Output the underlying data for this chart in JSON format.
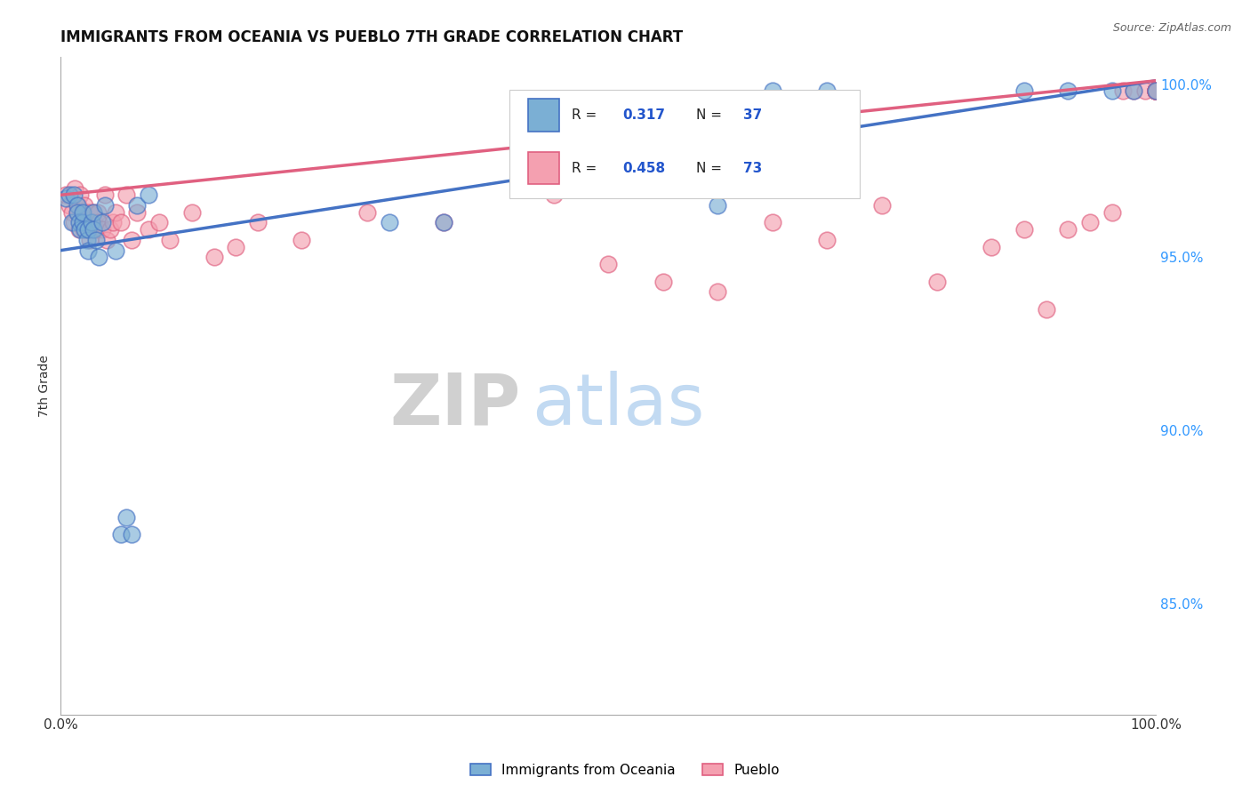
{
  "title": "IMMIGRANTS FROM OCEANIA VS PUEBLO 7TH GRADE CORRELATION CHART",
  "source_text": "Source: ZipAtlas.com",
  "ylabel": "7th Grade",
  "watermark_zip": "ZIP",
  "watermark_atlas": "atlas",
  "xlim": [
    0.0,
    1.0
  ],
  "ylim": [
    0.818,
    1.008
  ],
  "right_yticks": [
    0.85,
    0.9,
    0.95,
    1.0
  ],
  "right_yticklabels": [
    "85.0%",
    "90.0%",
    "95.0%",
    "100.0%"
  ],
  "xticks": [
    0.0,
    1.0
  ],
  "xticklabels": [
    "0.0%",
    "100.0%"
  ],
  "blue_R": 0.317,
  "blue_N": 37,
  "pink_R": 0.458,
  "pink_N": 73,
  "blue_color": "#7BAFD4",
  "pink_color": "#F4A0B0",
  "blue_line_color": "#4472C4",
  "pink_line_color": "#E06080",
  "legend_label_blue": "Immigrants from Oceania",
  "legend_label_pink": "Pueblo",
  "blue_line_x0": 0.0,
  "blue_line_y0": 0.952,
  "blue_line_x1": 1.0,
  "blue_line_y1": 1.001,
  "pink_line_x0": 0.0,
  "pink_line_y0": 0.968,
  "pink_line_x1": 1.0,
  "pink_line_y1": 1.001,
  "blue_x": [
    0.005,
    0.008,
    0.01,
    0.012,
    0.015,
    0.015,
    0.017,
    0.018,
    0.02,
    0.02,
    0.022,
    0.024,
    0.025,
    0.025,
    0.028,
    0.03,
    0.03,
    0.032,
    0.035,
    0.038,
    0.04,
    0.05,
    0.055,
    0.06,
    0.065,
    0.07,
    0.08,
    0.3,
    0.35,
    0.6,
    0.65,
    0.7,
    0.88,
    0.92,
    0.96,
    0.98,
    1.0
  ],
  "blue_y": [
    0.967,
    0.968,
    0.96,
    0.968,
    0.965,
    0.963,
    0.96,
    0.958,
    0.96,
    0.963,
    0.958,
    0.955,
    0.958,
    0.952,
    0.96,
    0.958,
    0.963,
    0.955,
    0.95,
    0.96,
    0.965,
    0.952,
    0.87,
    0.875,
    0.87,
    0.965,
    0.968,
    0.96,
    0.96,
    0.965,
    0.998,
    0.998,
    0.998,
    0.998,
    0.998,
    0.998,
    0.998
  ],
  "pink_x": [
    0.005,
    0.008,
    0.01,
    0.012,
    0.013,
    0.015,
    0.016,
    0.017,
    0.018,
    0.02,
    0.021,
    0.022,
    0.024,
    0.025,
    0.026,
    0.027,
    0.028,
    0.03,
    0.031,
    0.032,
    0.034,
    0.035,
    0.038,
    0.04,
    0.042,
    0.045,
    0.048,
    0.05,
    0.055,
    0.06,
    0.065,
    0.07,
    0.08,
    0.09,
    0.1,
    0.12,
    0.14,
    0.16,
    0.18,
    0.22,
    0.28,
    0.35,
    0.45,
    0.5,
    0.55,
    0.6,
    0.65,
    0.7,
    0.75,
    0.8,
    0.85,
    0.88,
    0.9,
    0.92,
    0.94,
    0.96,
    0.97,
    0.98,
    0.99,
    1.0,
    1.0,
    1.0,
    1.0,
    1.0,
    1.0,
    1.0,
    1.0,
    1.0,
    1.0,
    1.0,
    1.0,
    1.0,
    1.0
  ],
  "pink_y": [
    0.968,
    0.965,
    0.963,
    0.96,
    0.97,
    0.963,
    0.965,
    0.958,
    0.968,
    0.96,
    0.958,
    0.965,
    0.96,
    0.958,
    0.963,
    0.955,
    0.958,
    0.963,
    0.96,
    0.958,
    0.963,
    0.96,
    0.958,
    0.968,
    0.955,
    0.958,
    0.96,
    0.963,
    0.96,
    0.968,
    0.955,
    0.963,
    0.958,
    0.96,
    0.955,
    0.963,
    0.95,
    0.953,
    0.96,
    0.955,
    0.963,
    0.96,
    0.968,
    0.948,
    0.943,
    0.94,
    0.96,
    0.955,
    0.965,
    0.943,
    0.953,
    0.958,
    0.935,
    0.958,
    0.96,
    0.963,
    0.998,
    0.998,
    0.998,
    0.998,
    0.998,
    0.998,
    0.998,
    0.998,
    0.998,
    0.998,
    0.998,
    0.998,
    0.998,
    0.998,
    0.998,
    0.998,
    0.998
  ]
}
